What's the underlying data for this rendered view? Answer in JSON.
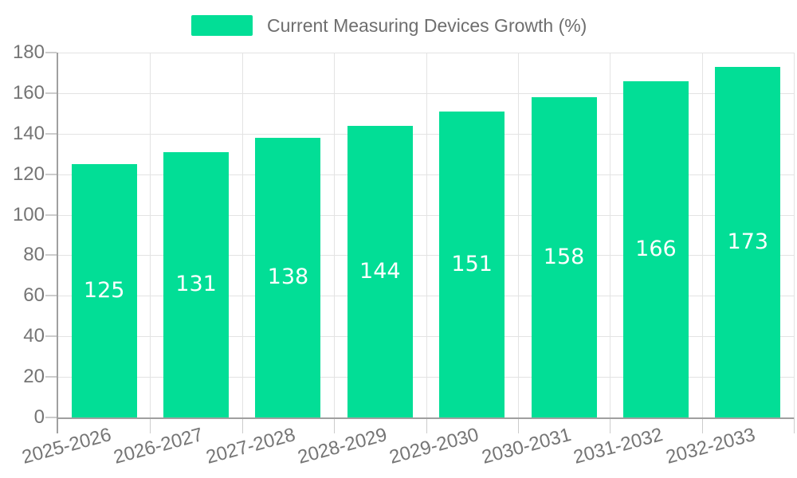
{
  "legend": {
    "label": "Current Measuring Devices Growth (%)"
  },
  "chart_data": {
    "type": "bar",
    "title": "Current Measuring Devices Growth (%)",
    "categories": [
      "2025-2026",
      "2026-2027",
      "2027-2028",
      "2028-2029",
      "2029-2030",
      "2030-2031",
      "2031-2032",
      "2032-2033"
    ],
    "values": [
      125,
      131,
      138,
      144,
      151,
      158,
      166,
      173
    ],
    "xlabel": "",
    "ylabel": "",
    "ylim": [
      0,
      180
    ],
    "ytick_step": 20,
    "ytick_labels": [
      "0",
      "20",
      "40",
      "60",
      "80",
      "100",
      "120",
      "140",
      "160",
      "180"
    ],
    "grid": true,
    "legend_position": "top",
    "value_labels_position": "inside-middle",
    "colors": {
      "bar": "#02DE96",
      "grid": "#E3E3E3",
      "axis": "#A0A0A0",
      "tick": "#CCCCCC",
      "axis_label_text": "#757575",
      "legend_text": "#6E6E6E",
      "value_label_text": "#FFFFFF",
      "background": "#FFFFFF"
    }
  }
}
